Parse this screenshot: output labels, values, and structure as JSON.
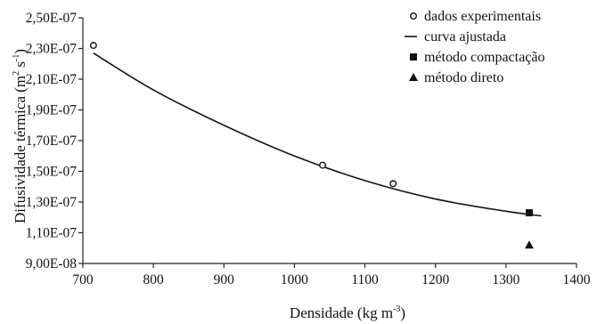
{
  "chart_data": {
    "type": "scatter",
    "xlabel": "Densidade (kg m-3)",
    "ylabel": "Difusividade térmica (m2 s-1)",
    "xlim": [
      700,
      1400
    ],
    "ylim": [
      9e-08,
      2.5e-07
    ],
    "xticks": [
      700,
      800,
      900,
      1000,
      1100,
      1200,
      1300,
      1400
    ],
    "xtick_labels": [
      "700",
      "800",
      "900",
      "1000",
      "1100",
      "1200",
      "1300",
      "1400"
    ],
    "yticks": [
      9e-08,
      1.1e-07,
      1.3e-07,
      1.5e-07,
      1.7e-07,
      1.9e-07,
      2.1e-07,
      2.3e-07,
      2.5e-07
    ],
    "ytick_labels": [
      "9,00E-08",
      "1,10E-07",
      "1,30E-07",
      "1,50E-07",
      "1,70E-07",
      "1,90E-07",
      "2,10E-07",
      "2,30E-07",
      "2,50E-07"
    ],
    "grid": false,
    "legend_position": "top-right",
    "series": [
      {
        "name": "dados experimentais",
        "kind": "scatter",
        "marker": "open-circle",
        "x": [
          715,
          1040,
          1140
        ],
        "y": [
          2.32e-07,
          1.54e-07,
          1.42e-07
        ]
      },
      {
        "name": "curva ajustada",
        "kind": "line",
        "x": [
          715,
          800,
          900,
          1000,
          1100,
          1200,
          1300,
          1350
        ],
        "y": [
          2.27e-07,
          2.03e-07,
          1.8e-07,
          1.6e-07,
          1.44e-07,
          1.32e-07,
          1.24e-07,
          1.21e-07
        ]
      },
      {
        "name": "método compactação",
        "kind": "scatter",
        "marker": "filled-square",
        "x": [
          1333
        ],
        "y": [
          1.23e-07
        ]
      },
      {
        "name": "método direto",
        "kind": "scatter",
        "marker": "filled-triangle",
        "x": [
          1333
        ],
        "y": [
          1.02e-07
        ]
      }
    ]
  },
  "labels": {
    "xlabel_main": "Densidade (kg m",
    "xlabel_sup": "-3",
    "xlabel_end": ")",
    "ylabel_main": "Difusividade térmica (m",
    "ylabel_sup1": "2",
    "ylabel_mid": " s",
    "ylabel_sup2": "-1",
    "ylabel_end": ")"
  }
}
